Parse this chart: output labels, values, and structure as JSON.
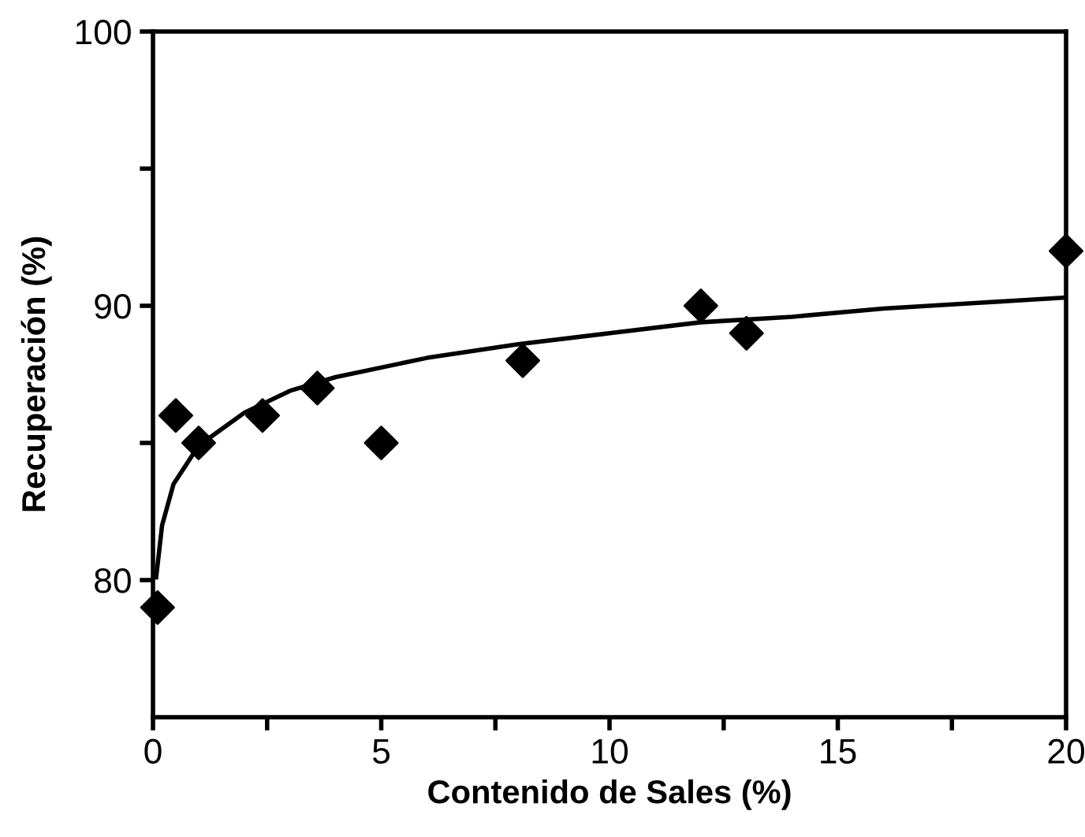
{
  "chart_data": {
    "type": "scatter",
    "xlabel": "Contenido de Sales (%)",
    "ylabel": "Recuperación (%)",
    "xlim": [
      0,
      20
    ],
    "ylim": [
      75,
      100
    ],
    "xticks": [
      0,
      {
        "value": 2.5,
        "label": null
      },
      5,
      {
        "value": 7.5,
        "label": null
      },
      10,
      {
        "value": 12.5,
        "label": null
      },
      15,
      {
        "value": 17.5,
        "label": null
      },
      20
    ],
    "yticks": [
      80,
      {
        "value": 85,
        "label": null
      },
      90,
      {
        "value": 95,
        "label": null
      },
      100
    ],
    "grid": false,
    "legend": false,
    "series": [
      {
        "color": "#000000",
        "marker": "diamond",
        "x": [
          0.1,
          0.5,
          1,
          2.4,
          3.6,
          5,
          8.1,
          12,
          13,
          20
        ],
        "values": [
          79,
          86,
          85,
          86,
          87,
          85,
          88,
          90,
          89,
          92
        ]
      },
      {
        "type": "line",
        "color": "#000000",
        "marker": "none",
        "line_style": "solid",
        "x": [
          0.07,
          0.2,
          0.45,
          1,
          2,
          3,
          4,
          6,
          8,
          10,
          12,
          14,
          16,
          18,
          20
        ],
        "values": [
          80.1,
          82.0,
          83.5,
          84.9,
          86.1,
          86.9,
          87.4,
          88.1,
          88.6,
          89.0,
          89.4,
          89.6,
          89.9,
          90.1,
          90.3
        ]
      }
    ]
  }
}
